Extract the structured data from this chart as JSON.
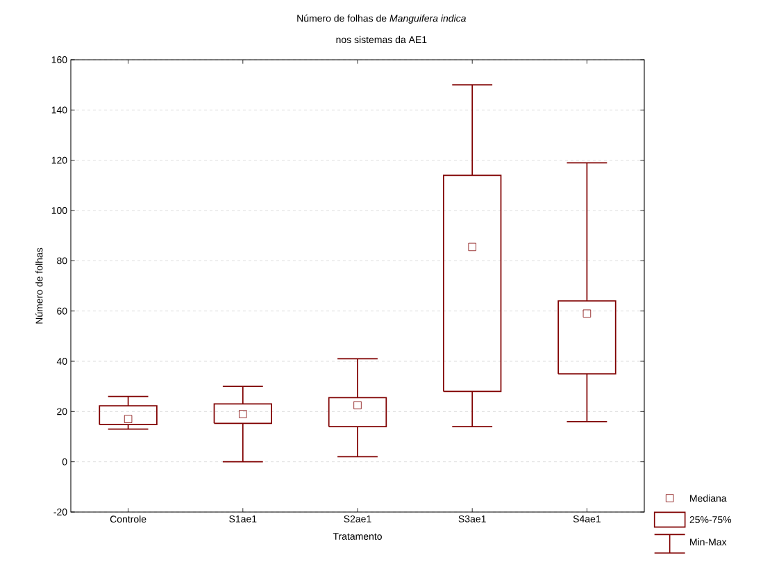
{
  "chart_data": {
    "type": "box",
    "title": "Número de folhas de *Manguifera indica*",
    "subtitle": "nos sistemas da AE1",
    "xlabel": "Tratamento",
    "ylabel": "Número de folhas",
    "categories": [
      "Controle",
      "S1ae1",
      "S2ae1",
      "S3ae1",
      "S4ae1"
    ],
    "boxes": [
      {
        "low": 13,
        "q1": 14.8,
        "median": 17,
        "q3": 22.3,
        "high": 26
      },
      {
        "low": 0,
        "q1": 15.3,
        "median": 19,
        "q3": 23,
        "high": 30
      },
      {
        "low": 2,
        "q1": 14,
        "median": 22.5,
        "q3": 25.5,
        "high": 41
      },
      {
        "low": 14,
        "q1": 28,
        "median": 85.5,
        "q3": 114,
        "high": 150
      },
      {
        "low": 16,
        "q1": 35,
        "median": 59,
        "q3": 64,
        "high": 119
      }
    ],
    "color": "#800000",
    "marker": "square",
    "ylim": [
      -20,
      160
    ],
    "yticks": [
      -20,
      0,
      20,
      40,
      60,
      80,
      100,
      120,
      140,
      160
    ],
    "grid": "y",
    "annotations": [
      "Mediana",
      "25%-75%",
      "Min-Max"
    ]
  }
}
